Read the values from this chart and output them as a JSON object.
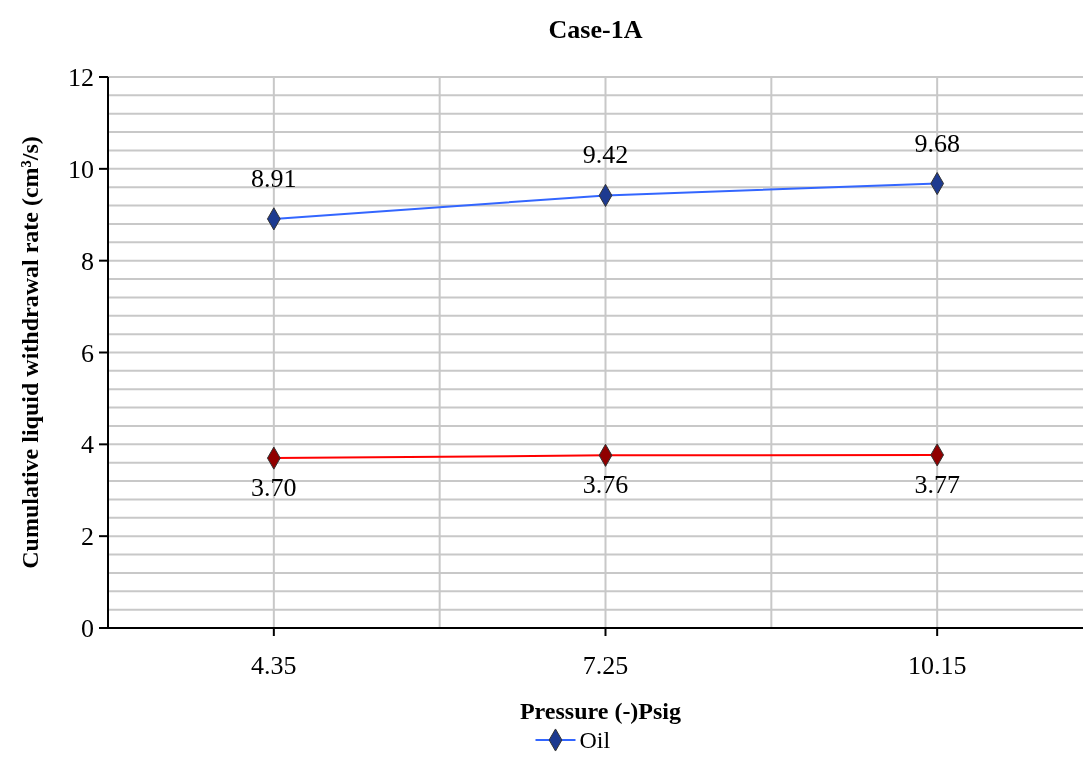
{
  "chart_data": {
    "type": "line",
    "title": "Case-1A",
    "xlabel": "Pressure (-)Psig",
    "ylabel": "Cumulative liquid withdrawal rate (cm³/s)",
    "categories": [
      "4.35",
      "7.25",
      "10.15"
    ],
    "series": [
      {
        "name": "Oil",
        "color": "#3366ff",
        "values": [
          8.91,
          9.42,
          9.68
        ],
        "value_labels": [
          "8.91",
          "9.42",
          "9.68"
        ]
      },
      {
        "color": "#ff0000",
        "values": [
          3.7,
          3.76,
          3.77
        ],
        "value_labels": [
          "3.70",
          "3.76",
          "3.77"
        ]
      }
    ],
    "ylim": [
      0,
      12
    ],
    "yticks": [
      0,
      2,
      4,
      6,
      8,
      10,
      12
    ],
    "grid": true,
    "legend": "bottom",
    "marker": "diamond"
  }
}
